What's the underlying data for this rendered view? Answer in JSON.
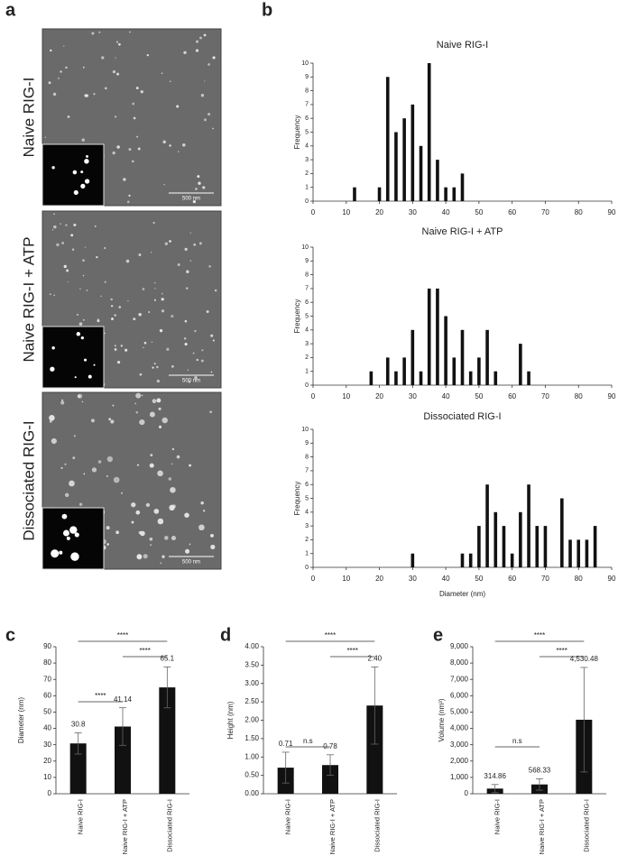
{
  "panel_labels": [
    "a",
    "b",
    "c",
    "d",
    "e"
  ],
  "images": [
    {
      "label": "Naive RIG-I",
      "scale_bar": "500 nm"
    },
    {
      "label": "Naive RIG-I + ATP",
      "scale_bar": "500 nm"
    },
    {
      "label": "Dissociated RIG-I",
      "scale_bar": "500 nm"
    }
  ],
  "chart_data": [
    {
      "type": "bar",
      "title": "Naive RIG-I",
      "y_label": "Frequency",
      "x": [
        12.5,
        20,
        22.5,
        25,
        27.5,
        30,
        32.5,
        35,
        37.5,
        40,
        42.5,
        45
      ],
      "values": [
        1,
        1,
        9,
        5,
        6,
        7,
        4,
        10,
        3,
        1,
        1,
        2
      ],
      "color": "#111111",
      "xlim": [
        0,
        90
      ],
      "xticks": [
        0,
        10,
        20,
        30,
        40,
        50,
        60,
        70,
        80,
        90
      ],
      "ylim": [
        0,
        10
      ],
      "yticks": [
        0,
        1,
        2,
        3,
        4,
        5,
        6,
        7,
        8,
        9,
        10
      ]
    },
    {
      "type": "bar",
      "title": "Naive RIG-I + ATP",
      "y_label": "Frequency",
      "x": [
        17.5,
        22.5,
        25,
        27.5,
        30,
        32.5,
        35,
        37.5,
        40,
        42.5,
        45,
        47.5,
        50,
        52.5,
        55,
        62.5,
        65
      ],
      "values": [
        1,
        2,
        1,
        2,
        4,
        1,
        7,
        7,
        5,
        2,
        4,
        1,
        2,
        4,
        1,
        3,
        1
      ],
      "color": "#111111",
      "xlim": [
        0,
        90
      ],
      "xticks": [
        0,
        10,
        20,
        30,
        40,
        50,
        60,
        70,
        80,
        90
      ],
      "ylim": [
        0,
        10
      ],
      "yticks": [
        0,
        1,
        2,
        3,
        4,
        5,
        6,
        7,
        8,
        9,
        10
      ]
    },
    {
      "type": "bar",
      "title": "Dissociated RIG-I",
      "y_label": "Frequency",
      "x_label": "Diameter (nm)",
      "x": [
        30,
        45,
        47.5,
        50,
        52.5,
        55,
        57.5,
        60,
        62.5,
        65,
        67.5,
        70,
        75,
        77.5,
        80,
        82.5,
        85
      ],
      "values": [
        1,
        1,
        1,
        3,
        6,
        4,
        3,
        1,
        4,
        6,
        3,
        3,
        5,
        2,
        2,
        2,
        3
      ],
      "color": "#111111",
      "xlim": [
        0,
        90
      ],
      "xticks": [
        0,
        10,
        20,
        30,
        40,
        50,
        60,
        70,
        80,
        90
      ],
      "ylim": [
        0,
        10
      ],
      "yticks": [
        0,
        1,
        2,
        3,
        4,
        5,
        6,
        7,
        8,
        9,
        10
      ]
    },
    {
      "type": "errorbar",
      "y_label": "Diameter (nm)",
      "categories": [
        "Naive RIG-I",
        "Naive RIG-I + ATP",
        "Dissociated RIG-I"
      ],
      "values": [
        30.8,
        41.14,
        65.1
      ],
      "errors": [
        6.5,
        11.5,
        12.5
      ],
      "color": "#111111",
      "ylim": [
        0,
        90
      ],
      "yticks": [
        0,
        10,
        20,
        30,
        40,
        50,
        60,
        70,
        80,
        90
      ],
      "annotations": [
        "****",
        "****",
        "****"
      ]
    },
    {
      "type": "errorbar",
      "y_label": "Height (nm)",
      "categories": [
        "Naive RIG-I",
        "Naive RIG-I + ATP",
        "Dissociated RIG-I"
      ],
      "values": [
        0.71,
        0.78,
        2.4
      ],
      "value_labels": [
        "0.71",
        "0.78",
        "2.40"
      ],
      "errors": [
        0.42,
        0.28,
        1.05
      ],
      "color": "#111111",
      "ylim": [
        0,
        4
      ],
      "yticks": [
        {
          "value": 0,
          "label": "0.00"
        },
        {
          "value": 0.5,
          "label": "0.50"
        },
        {
          "value": 1,
          "label": "1.00"
        },
        {
          "value": 1.5,
          "label": "1.50"
        },
        {
          "value": 2,
          "label": "2.00"
        },
        {
          "value": 2.5,
          "label": "2.50"
        },
        {
          "value": 3,
          "label": "3.00"
        },
        {
          "value": 3.5,
          "label": "3.50"
        },
        {
          "value": 4,
          "label": "4.00"
        }
      ],
      "annotations": [
        "****",
        "****",
        "n.s"
      ]
    },
    {
      "type": "errorbar",
      "y_label": "Volume (nm³)",
      "categories": [
        "Naive RIG-I",
        "Naive RIG-I + ATP",
        "Dissociated RIG-I"
      ],
      "values": [
        314.86,
        568.33,
        4530.48
      ],
      "value_labels": [
        "314.86",
        "568.33",
        "4,530.48"
      ],
      "errors": [
        250,
        350,
        3200
      ],
      "color": "#111111",
      "ylim": [
        0,
        9000
      ],
      "yticks": [
        0,
        {
          "value": 1000,
          "label": "1,000"
        },
        {
          "value": 2000,
          "label": "2,000"
        },
        {
          "value": 3000,
          "label": "3,000"
        },
        {
          "value": 4000,
          "label": "4,000"
        },
        {
          "value": 5000,
          "label": "5,000"
        },
        {
          "value": 6000,
          "label": "6,000"
        },
        {
          "value": 7000,
          "label": "7,000"
        },
        {
          "value": 8000,
          "label": "8,000"
        },
        {
          "value": 9000,
          "label": "9,000"
        }
      ],
      "annotations": [
        "****",
        "****",
        "n.s"
      ]
    }
  ]
}
